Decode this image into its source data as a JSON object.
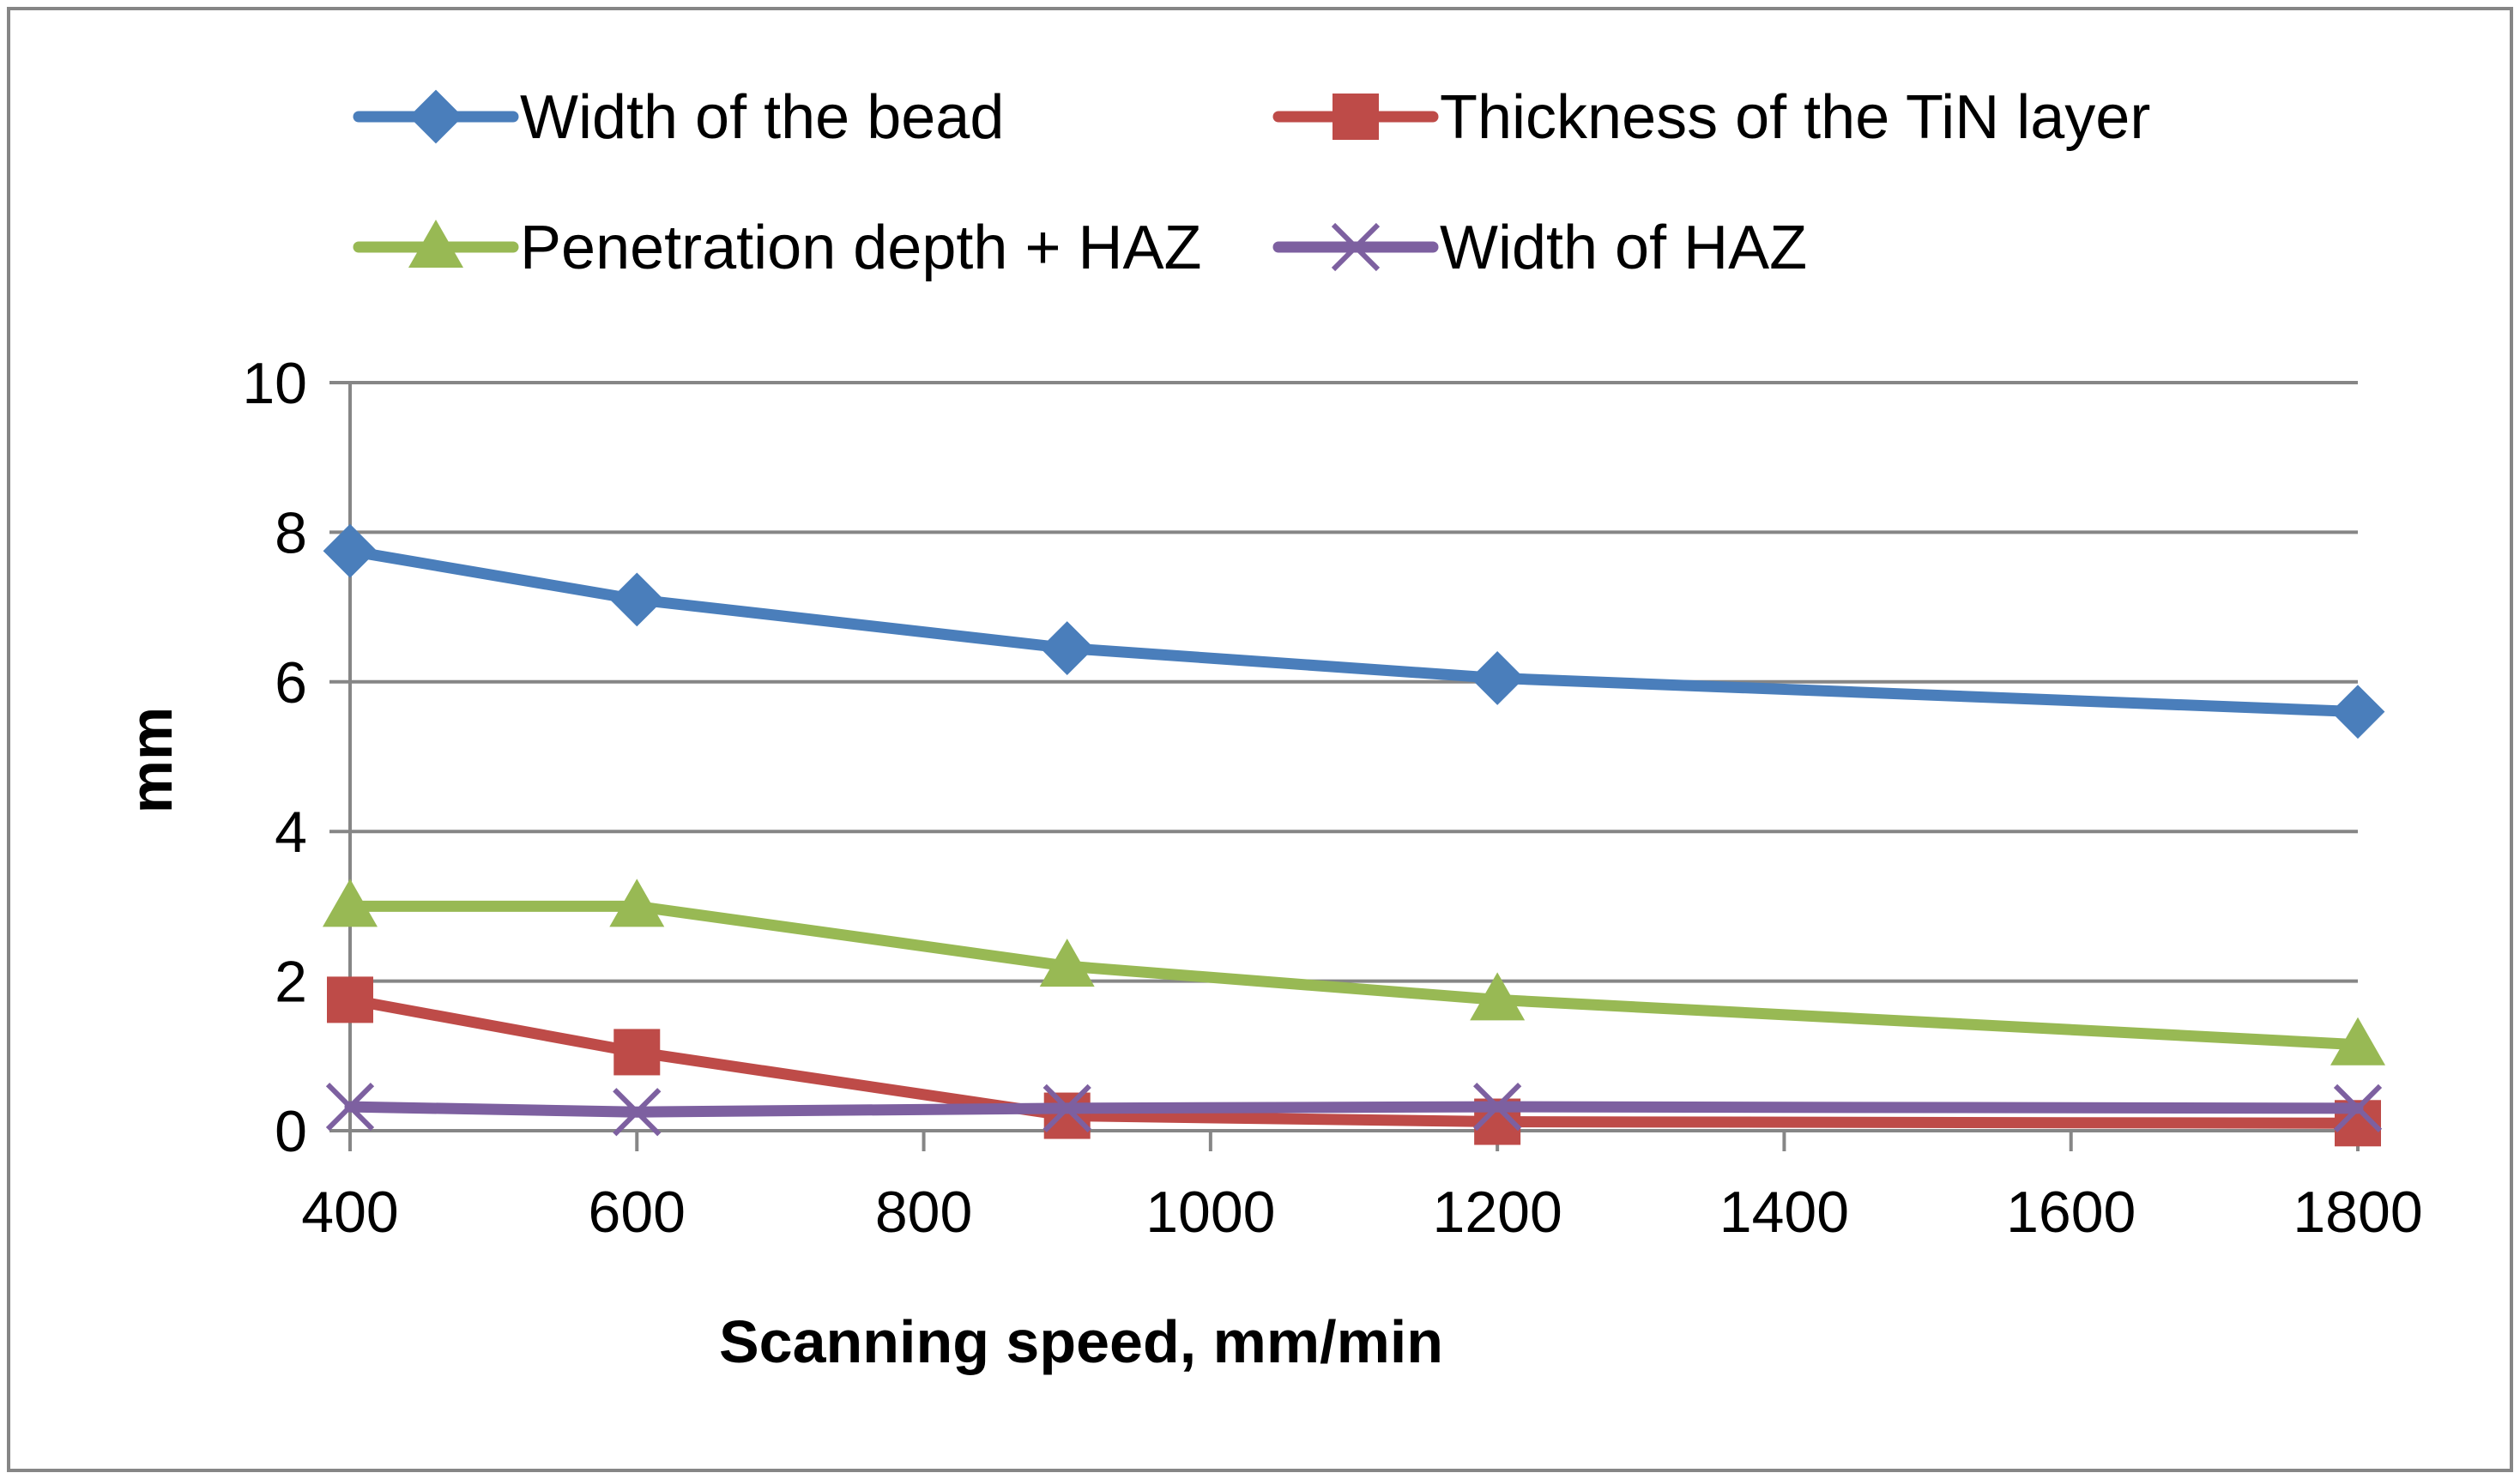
{
  "chart_data": {
    "type": "line",
    "title": "",
    "xlabel": "Scanning speed, mm/min",
    "ylabel": "mm",
    "x": [
      400,
      600,
      900,
      1200,
      1800
    ],
    "xlim": [
      400,
      1800
    ],
    "xticks": [
      400,
      600,
      800,
      1000,
      1200,
      1400,
      1600,
      1800
    ],
    "xtick_labels": [
      "400",
      "600",
      "800",
      "1000",
      "1200",
      "1400",
      "1600",
      "1800"
    ],
    "ylim": [
      0,
      10
    ],
    "yticks": [
      0,
      2,
      4,
      6,
      8,
      10
    ],
    "ytick_labels": [
      "0",
      "2",
      "4",
      "6",
      "8",
      "10"
    ],
    "grid": true,
    "legend_position": "top",
    "series": [
      {
        "name": "Width of the bead",
        "values": [
          7.75,
          7.1,
          6.45,
          6.05,
          5.6
        ],
        "color": "#4a7ebb",
        "marker": "diamond"
      },
      {
        "name": "Thickness of the TiN layer",
        "values": [
          1.75,
          1.05,
          0.2,
          0.12,
          0.1
        ],
        "color": "#be4b48",
        "marker": "square"
      },
      {
        "name": "Penetration depth + HAZ",
        "values": [
          3.0,
          3.0,
          2.2,
          1.75,
          1.15
        ],
        "color": "#98b954",
        "marker": "triangle"
      },
      {
        "name": "Width of HAZ",
        "values": [
          0.32,
          0.25,
          0.3,
          0.32,
          0.3
        ],
        "color": "#7d60a0",
        "marker": "x"
      }
    ]
  }
}
